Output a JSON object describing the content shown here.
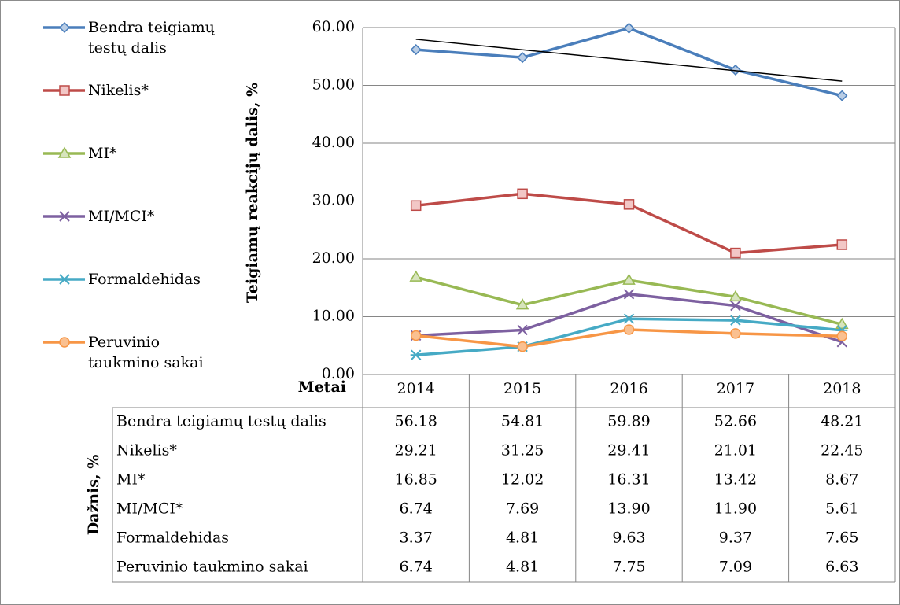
{
  "chart_data": {
    "type": "line",
    "y_axis_label": "Teigiamų reakcijų dalis, %",
    "table_header": "Metai",
    "table_axis_label": "Dažnis, %",
    "categories": [
      "2014",
      "2015",
      "2016",
      "2017",
      "2018"
    ],
    "ylim": [
      0,
      60
    ],
    "yticks": [
      {
        "value": 0,
        "label": "0.00"
      },
      {
        "value": 10,
        "label": "10.00"
      },
      {
        "value": 20,
        "label": "20.00"
      },
      {
        "value": 30,
        "label": "30.00"
      },
      {
        "value": 40,
        "label": "40.00"
      },
      {
        "value": 50,
        "label": "50.00"
      },
      {
        "value": 60,
        "label": "60.00"
      }
    ],
    "grid": true,
    "legend": "left",
    "series": [
      {
        "name": "Bendra teigiamų testų dalis",
        "color": "#4a7ebb",
        "marker": "diamond",
        "trendline": true,
        "values": [
          56.18,
          54.81,
          59.89,
          52.66,
          48.21
        ],
        "value_labels": [
          "56.18",
          "54.81",
          "59.89",
          "52.66",
          "48.21"
        ]
      },
      {
        "name": "Nikelis*",
        "color": "#be4b48",
        "marker": "square",
        "values": [
          29.21,
          31.25,
          29.41,
          21.01,
          22.45
        ],
        "value_labels": [
          "29.21",
          "31.25",
          "29.41",
          "21.01",
          "22.45"
        ]
      },
      {
        "name": "MI*",
        "color": "#98b954",
        "marker": "triangle",
        "values": [
          16.85,
          12.02,
          16.31,
          13.42,
          8.67
        ],
        "value_labels": [
          "16.85",
          "12.02",
          "16.31",
          "13.42",
          "8.67"
        ]
      },
      {
        "name": "MI/MCI*",
        "color": "#7d60a0",
        "marker": "x",
        "values": [
          6.74,
          7.69,
          13.9,
          11.9,
          5.61
        ],
        "value_labels": [
          "6.74",
          "7.69",
          "13.90",
          "11.90",
          "5.61"
        ]
      },
      {
        "name": "Formaldehidas",
        "color": "#46aac5",
        "marker": "star",
        "values": [
          3.37,
          4.81,
          9.63,
          9.37,
          7.65
        ],
        "value_labels": [
          "3.37",
          "4.81",
          "9.63",
          "9.37",
          "7.65"
        ]
      },
      {
        "name": "Peruvinio taukmino sakai",
        "color": "#f79646",
        "marker": "circle",
        "values": [
          6.74,
          4.81,
          7.75,
          7.09,
          6.63
        ],
        "value_labels": [
          "6.74",
          "4.81",
          "7.75",
          "7.09",
          "6.63"
        ]
      }
    ]
  }
}
